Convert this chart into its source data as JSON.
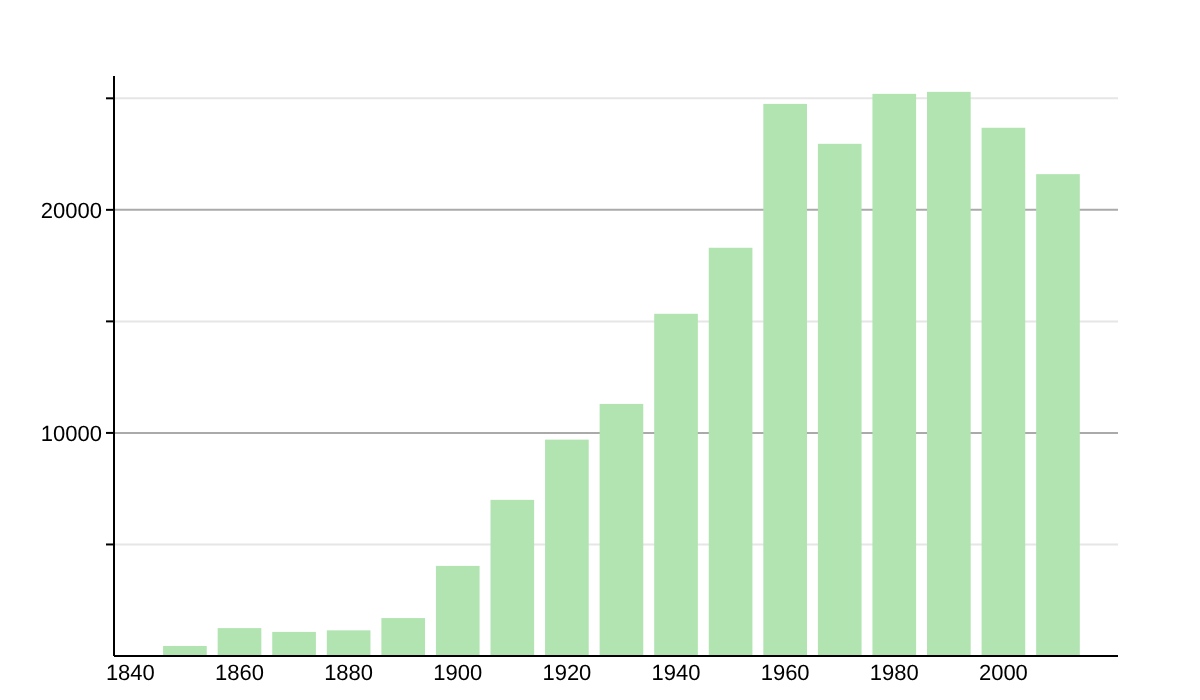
{
  "chart_data": {
    "type": "bar",
    "x": [
      1850,
      1860,
      1870,
      1880,
      1890,
      1900,
      1910,
      1920,
      1930,
      1940,
      1950,
      1960,
      1970,
      1980,
      1990,
      2000,
      2010
    ],
    "values": [
      450,
      1250,
      1080,
      1150,
      1700,
      4040,
      7000,
      9700,
      11300,
      15340,
      18300,
      24750,
      22960,
      25200,
      25290,
      23680,
      21600
    ],
    "color": "#b1e4b1",
    "xlim": [
      1837,
      2021
    ],
    "xticks": [
      1840,
      1860,
      1880,
      1900,
      1920,
      1940,
      1960,
      1980,
      2000
    ],
    "ylim": [
      0,
      26000
    ],
    "yticks": [
      {
        "value": 5000,
        "label": null
      },
      10000,
      {
        "value": 15000,
        "label": null
      },
      20000,
      {
        "value": 25000,
        "label": null
      }
    ],
    "grid": true
  }
}
